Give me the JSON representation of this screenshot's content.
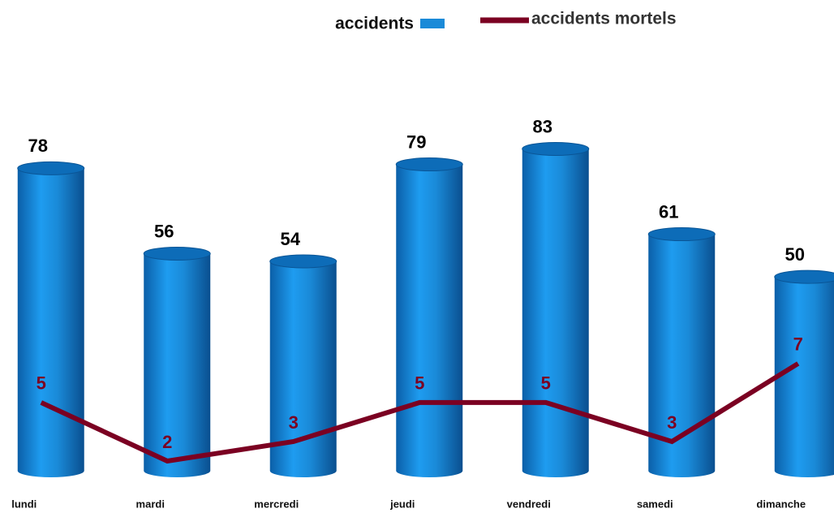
{
  "chart_data": {
    "type": "bar",
    "categories": [
      "lundi",
      "mardi",
      "mercredi",
      "jeudi",
      "vendredi",
      "samedi",
      "dimanche"
    ],
    "series": [
      {
        "name": "accidents",
        "type": "bar",
        "color": "#1a8ad8",
        "values": [
          78,
          56,
          54,
          79,
          83,
          61,
          50
        ]
      },
      {
        "name": "accidents mortels",
        "type": "line",
        "axis": "y2",
        "color": "#7b0022",
        "values": [
          5,
          2,
          3,
          5,
          5,
          3,
          7
        ]
      }
    ],
    "ylim": [
      0,
      90
    ],
    "y2lim": [
      1.5,
      19.4
    ],
    "grid": false,
    "legend": "top"
  }
}
